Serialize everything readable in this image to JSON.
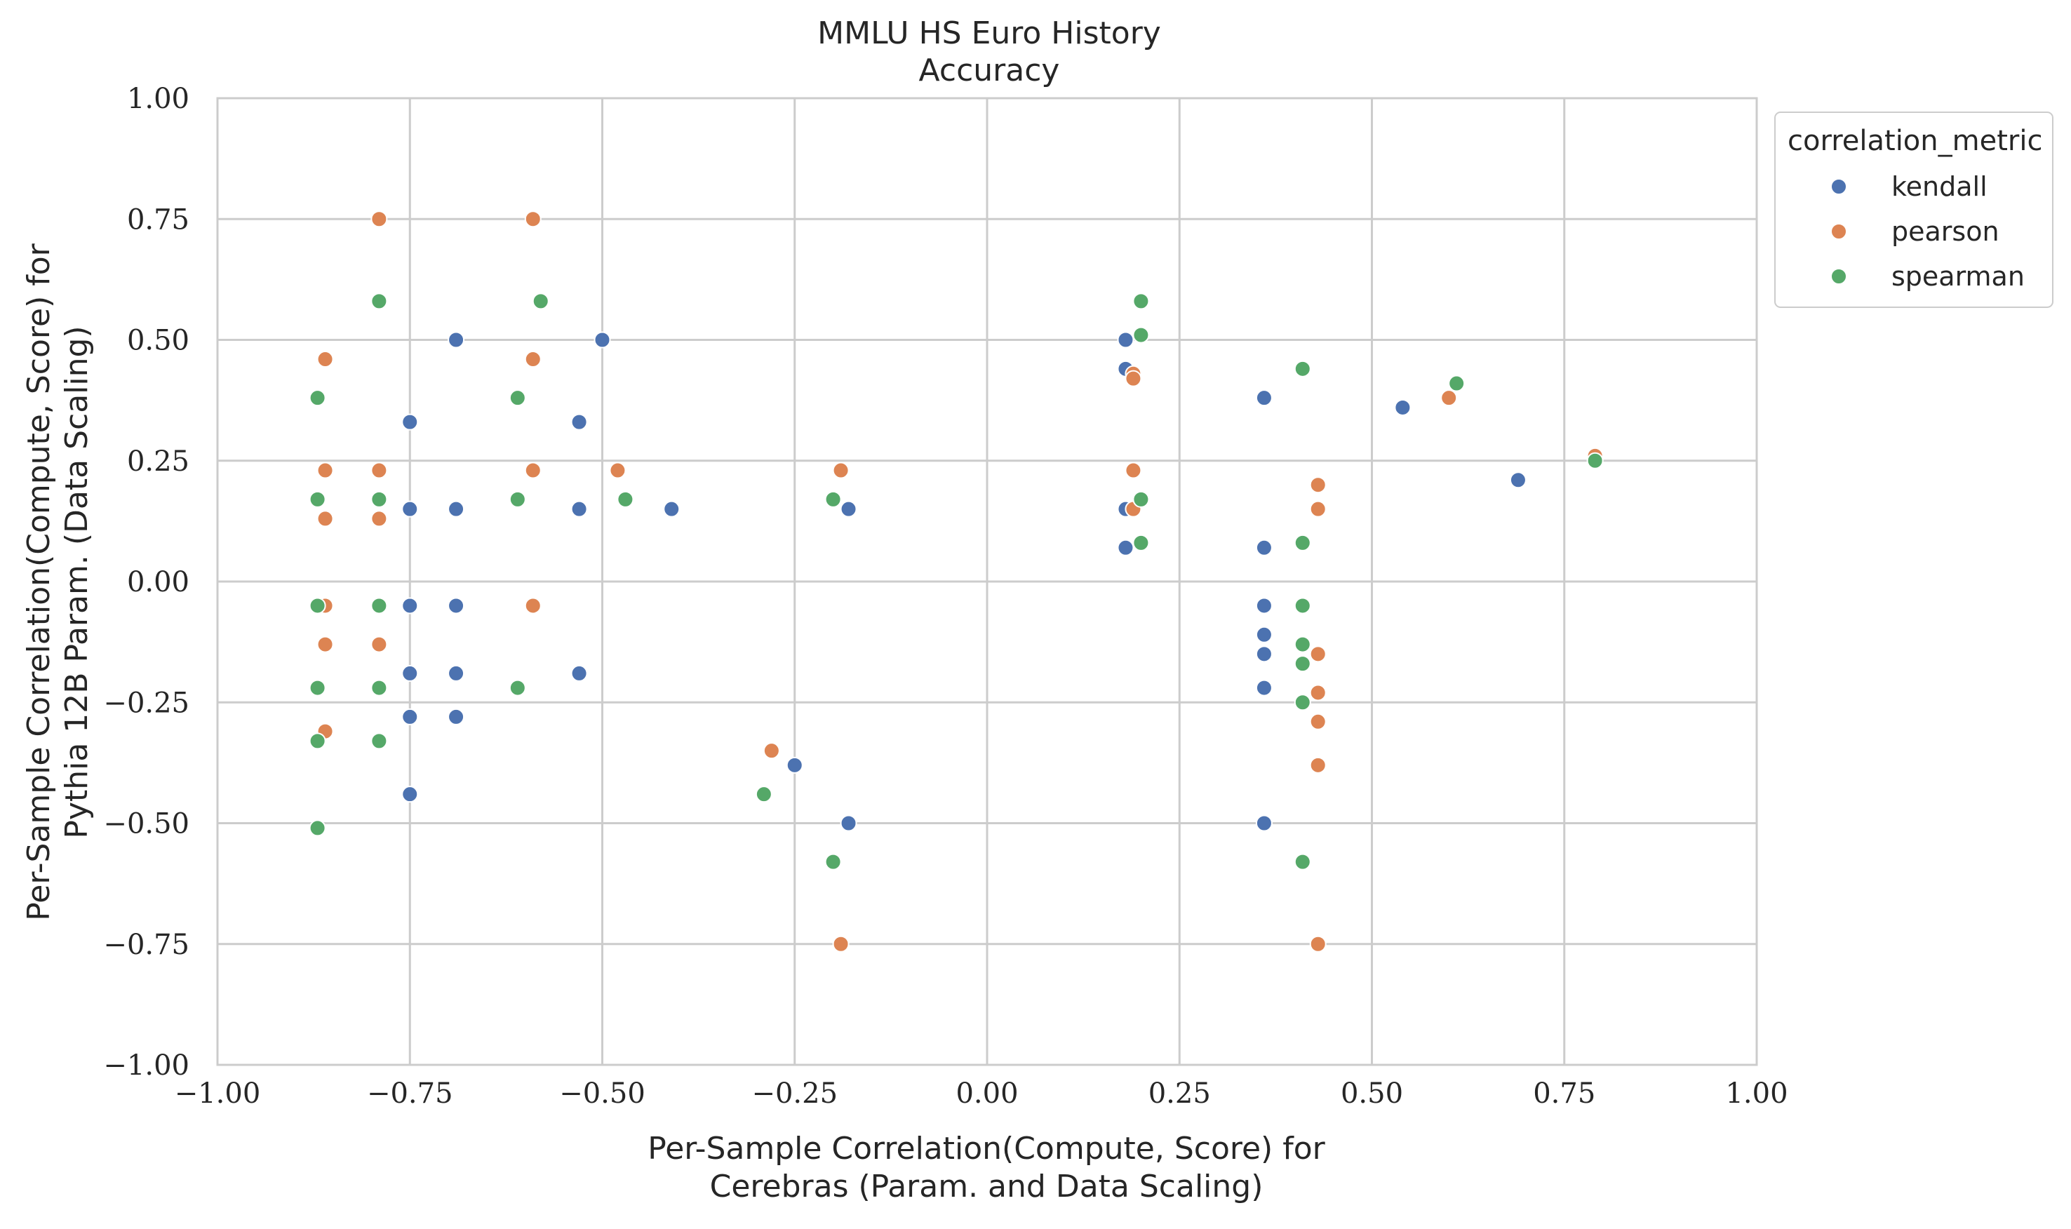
{
  "chart_data": {
    "type": "scatter",
    "title": "MMLU HS Euro History",
    "subtitle": "Accuracy",
    "xlabel": [
      "Per-Sample Correlation(Compute, Score) for",
      "Cerebras (Param. and Data Scaling)"
    ],
    "ylabel": [
      "Per-Sample Correlation(Compute, Score) for",
      "Pythia 12B Param. (Data Scaling)"
    ],
    "xlim": [
      -1.0,
      1.0
    ],
    "ylim": [
      -1.0,
      1.0
    ],
    "xticks": [
      -1.0,
      -0.75,
      -0.5,
      -0.25,
      0.0,
      0.25,
      0.5,
      0.75,
      1.0
    ],
    "yticks": [
      -1.0,
      -0.75,
      -0.5,
      -0.25,
      0.0,
      0.25,
      0.5,
      0.75,
      1.0
    ],
    "xtick_labels": [
      "−1.00",
      "−0.75",
      "−0.50",
      "−0.25",
      "0.00",
      "0.25",
      "0.50",
      "0.75",
      "1.00"
    ],
    "ytick_labels": [
      "−1.00",
      "−0.75",
      "−0.50",
      "−0.25",
      "0.00",
      "0.25",
      "0.50",
      "0.75",
      "1.00"
    ],
    "grid": true,
    "legend": {
      "title": "correlation_metric",
      "placement": "outside-top-right"
    },
    "series": [
      {
        "name": "kendall",
        "color": "#4c72b0",
        "points": [
          [
            -0.75,
            0.33
          ],
          [
            -0.75,
            0.15
          ],
          [
            -0.75,
            -0.05
          ],
          [
            -0.75,
            -0.19
          ],
          [
            -0.75,
            -0.28
          ],
          [
            -0.75,
            -0.44
          ],
          [
            -0.69,
            0.5
          ],
          [
            -0.69,
            0.15
          ],
          [
            -0.69,
            -0.05
          ],
          [
            -0.69,
            -0.19
          ],
          [
            -0.69,
            -0.28
          ],
          [
            -0.53,
            0.33
          ],
          [
            -0.53,
            0.15
          ],
          [
            -0.53,
            -0.19
          ],
          [
            -0.5,
            0.5
          ],
          [
            -0.41,
            0.15
          ],
          [
            -0.25,
            -0.38
          ],
          [
            -0.18,
            0.15
          ],
          [
            -0.18,
            -0.5
          ],
          [
            0.18,
            0.5
          ],
          [
            0.18,
            0.44
          ],
          [
            0.18,
            0.15
          ],
          [
            0.18,
            0.07
          ],
          [
            0.36,
            0.38
          ],
          [
            0.36,
            0.07
          ],
          [
            0.36,
            -0.05
          ],
          [
            0.36,
            -0.11
          ],
          [
            0.36,
            -0.15
          ],
          [
            0.36,
            -0.22
          ],
          [
            0.36,
            -0.5
          ],
          [
            0.54,
            0.36
          ],
          [
            0.69,
            0.21
          ]
        ]
      },
      {
        "name": "pearson",
        "color": "#dd8452",
        "points": [
          [
            -0.86,
            0.46
          ],
          [
            -0.86,
            0.23
          ],
          [
            -0.86,
            0.13
          ],
          [
            -0.86,
            -0.05
          ],
          [
            -0.86,
            -0.13
          ],
          [
            -0.86,
            -0.31
          ],
          [
            -0.79,
            0.75
          ],
          [
            -0.79,
            0.23
          ],
          [
            -0.79,
            0.13
          ],
          [
            -0.79,
            -0.05
          ],
          [
            -0.79,
            -0.13
          ],
          [
            -0.59,
            0.75
          ],
          [
            -0.59,
            0.46
          ],
          [
            -0.59,
            0.23
          ],
          [
            -0.59,
            -0.05
          ],
          [
            -0.48,
            0.23
          ],
          [
            -0.28,
            -0.35
          ],
          [
            -0.19,
            0.23
          ],
          [
            -0.19,
            -0.75
          ],
          [
            0.19,
            0.43
          ],
          [
            0.19,
            0.42
          ],
          [
            0.19,
            0.23
          ],
          [
            0.19,
            0.15
          ],
          [
            0.43,
            0.2
          ],
          [
            0.43,
            0.15
          ],
          [
            0.43,
            -0.15
          ],
          [
            0.43,
            -0.23
          ],
          [
            0.43,
            -0.29
          ],
          [
            0.43,
            -0.38
          ],
          [
            0.43,
            -0.75
          ],
          [
            0.6,
            0.38
          ],
          [
            0.79,
            0.26
          ]
        ]
      },
      {
        "name": "spearman",
        "color": "#55a868",
        "points": [
          [
            -0.87,
            0.38
          ],
          [
            -0.87,
            0.17
          ],
          [
            -0.87,
            -0.05
          ],
          [
            -0.87,
            -0.22
          ],
          [
            -0.87,
            -0.33
          ],
          [
            -0.87,
            -0.51
          ],
          [
            -0.79,
            0.58
          ],
          [
            -0.79,
            0.17
          ],
          [
            -0.79,
            -0.05
          ],
          [
            -0.79,
            -0.22
          ],
          [
            -0.79,
            -0.33
          ],
          [
            -0.58,
            0.58
          ],
          [
            -0.61,
            0.38
          ],
          [
            -0.61,
            0.17
          ],
          [
            -0.61,
            -0.22
          ],
          [
            -0.47,
            0.17
          ],
          [
            -0.29,
            -0.44
          ],
          [
            -0.2,
            0.17
          ],
          [
            -0.2,
            -0.58
          ],
          [
            0.2,
            0.58
          ],
          [
            0.2,
            0.51
          ],
          [
            0.2,
            0.17
          ],
          [
            0.2,
            0.08
          ],
          [
            0.41,
            0.44
          ],
          [
            0.41,
            0.08
          ],
          [
            0.41,
            -0.05
          ],
          [
            0.41,
            -0.13
          ],
          [
            0.41,
            -0.17
          ],
          [
            0.41,
            -0.25
          ],
          [
            0.41,
            -0.58
          ],
          [
            0.61,
            0.41
          ],
          [
            0.79,
            0.25
          ]
        ]
      }
    ]
  }
}
